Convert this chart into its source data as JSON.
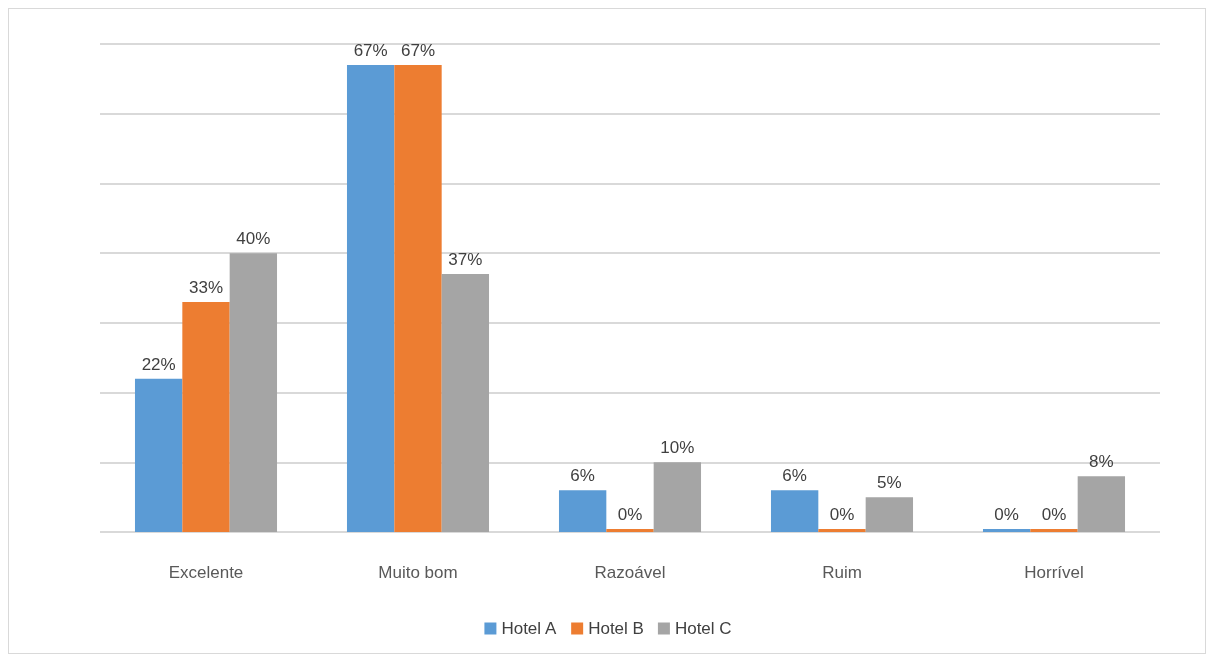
{
  "chart_data": {
    "type": "bar",
    "categories": [
      "Excelente",
      "Muito bom",
      "Razoável",
      "Ruim",
      "Horrível"
    ],
    "series": [
      {
        "name": "Hotel A",
        "color": "#5b9bd5",
        "values": [
          22,
          67,
          6,
          6,
          0
        ],
        "value_labels": [
          "22%",
          "67%",
          "6%",
          "6%",
          "0%"
        ]
      },
      {
        "name": "Hotel B",
        "color": "#ed7d31",
        "values": [
          33,
          67,
          0,
          0,
          0
        ],
        "value_labels": [
          "33%",
          "67%",
          "0%",
          "0%",
          "0%"
        ]
      },
      {
        "name": "Hotel C",
        "color": "#a5a5a5",
        "values": [
          40,
          37,
          10,
          5,
          8
        ],
        "value_labels": [
          "40%",
          "37%",
          "10%",
          "5%",
          "8%"
        ]
      }
    ],
    "ylim": [
      0,
      70
    ],
    "yticks": [
      {
        "value": 0,
        "label": null
      },
      {
        "value": 10,
        "label": null
      },
      {
        "value": 20,
        "label": null
      },
      {
        "value": 30,
        "label": null
      },
      {
        "value": 40,
        "label": null
      },
      {
        "value": 50,
        "label": null
      },
      {
        "value": 60,
        "label": null
      },
      {
        "value": 70,
        "label": null
      }
    ],
    "tick_labels": "x",
    "grid": "y",
    "legend": "bottom"
  }
}
